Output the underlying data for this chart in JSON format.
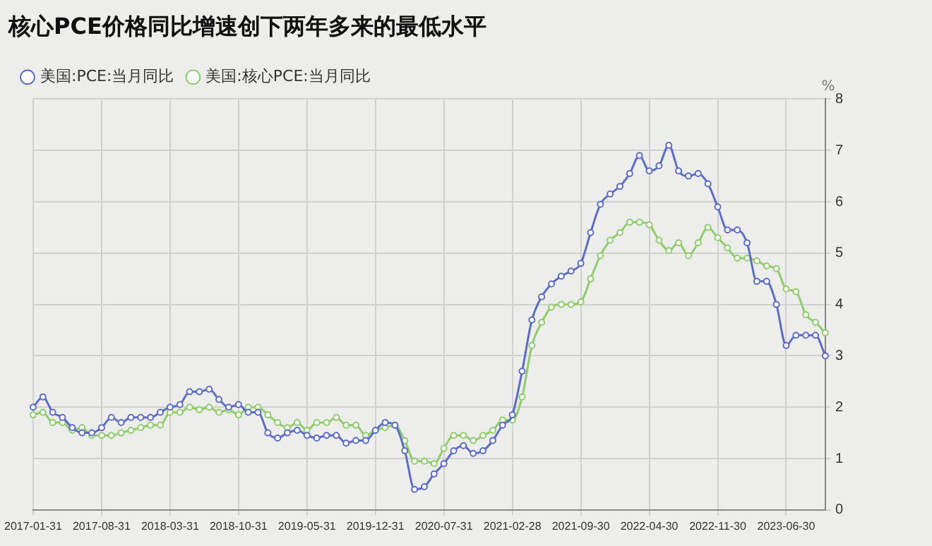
{
  "chart_data": {
    "type": "line",
    "title": "核心PCE价格同比增速创下两年多来的最低水平",
    "ylabel": "%",
    "categories": [
      "2017-01-31",
      null,
      null,
      null,
      null,
      null,
      null,
      "2017-08-31",
      null,
      null,
      null,
      null,
      null,
      null,
      "2018-03-31",
      null,
      null,
      null,
      null,
      null,
      null,
      "2018-10-31",
      null,
      null,
      null,
      null,
      null,
      null,
      "2019-05-31",
      null,
      null,
      null,
      null,
      null,
      null,
      "2019-12-31",
      null,
      null,
      null,
      null,
      null,
      null,
      "2020-07-31",
      null,
      null,
      null,
      null,
      null,
      null,
      "2021-02-28",
      null,
      null,
      null,
      null,
      null,
      null,
      "2021-09-30",
      null,
      null,
      null,
      null,
      null,
      null,
      "2022-04-30",
      null,
      null,
      null,
      null,
      null,
      null,
      "2022-11-30",
      null,
      null,
      null,
      null,
      null,
      null,
      "2023-06-30",
      null,
      null,
      null,
      null
    ],
    "series": [
      {
        "name": "美国:PCE:当月同比",
        "color": "#5b6dc8",
        "values": [
          2.0,
          2.2,
          1.9,
          1.8,
          1.6,
          1.5,
          1.5,
          1.6,
          1.8,
          1.7,
          1.8,
          1.8,
          1.8,
          1.9,
          2.0,
          2.05,
          2.3,
          2.3,
          2.35,
          2.15,
          2.0,
          2.05,
          1.9,
          1.9,
          1.5,
          1.4,
          1.5,
          1.55,
          1.45,
          1.4,
          1.45,
          1.45,
          1.3,
          1.35,
          1.35,
          1.55,
          1.7,
          1.65,
          1.15,
          0.4,
          0.45,
          0.7,
          0.9,
          1.15,
          1.25,
          1.1,
          1.15,
          1.35,
          1.65,
          1.85,
          2.7,
          3.7,
          4.15,
          4.4,
          4.55,
          4.65,
          4.8,
          5.4,
          5.95,
          6.15,
          6.3,
          6.55,
          6.9,
          6.6,
          6.7,
          7.1,
          6.6,
          6.5,
          6.55,
          6.35,
          5.9,
          5.45,
          5.45,
          5.2,
          4.45,
          4.45,
          4.0,
          3.2,
          3.4,
          3.4,
          3.4,
          3.0
        ]
      },
      {
        "name": "美国:核心PCE:当月同比",
        "color": "#8fcd6c",
        "values": [
          1.85,
          1.9,
          1.7,
          1.7,
          1.55,
          1.6,
          1.45,
          1.45,
          1.45,
          1.5,
          1.55,
          1.6,
          1.65,
          1.65,
          1.9,
          1.9,
          2.0,
          1.95,
          2.0,
          1.9,
          1.95,
          1.85,
          2.0,
          2.0,
          1.85,
          1.7,
          1.6,
          1.7,
          1.55,
          1.7,
          1.7,
          1.8,
          1.65,
          1.65,
          1.45,
          1.55,
          1.6,
          1.65,
          1.35,
          0.95,
          0.95,
          0.9,
          1.2,
          1.45,
          1.45,
          1.35,
          1.45,
          1.55,
          1.75,
          1.75,
          2.2,
          3.2,
          3.65,
          3.95,
          4.0,
          4.0,
          4.05,
          4.5,
          4.95,
          5.25,
          5.4,
          5.6,
          5.6,
          5.55,
          5.25,
          5.05,
          5.2,
          4.95,
          5.2,
          5.5,
          5.3,
          5.1,
          4.9,
          4.9,
          4.85,
          4.75,
          4.7,
          4.3,
          4.25,
          3.8,
          3.65,
          3.45
        ]
      }
    ],
    "ylim": [
      0,
      8
    ],
    "yticks": [
      0,
      1,
      2,
      3,
      4,
      5,
      6,
      7,
      8
    ],
    "grid": true,
    "legend": "top left",
    "marker": "circle",
    "line_style": "solid"
  }
}
